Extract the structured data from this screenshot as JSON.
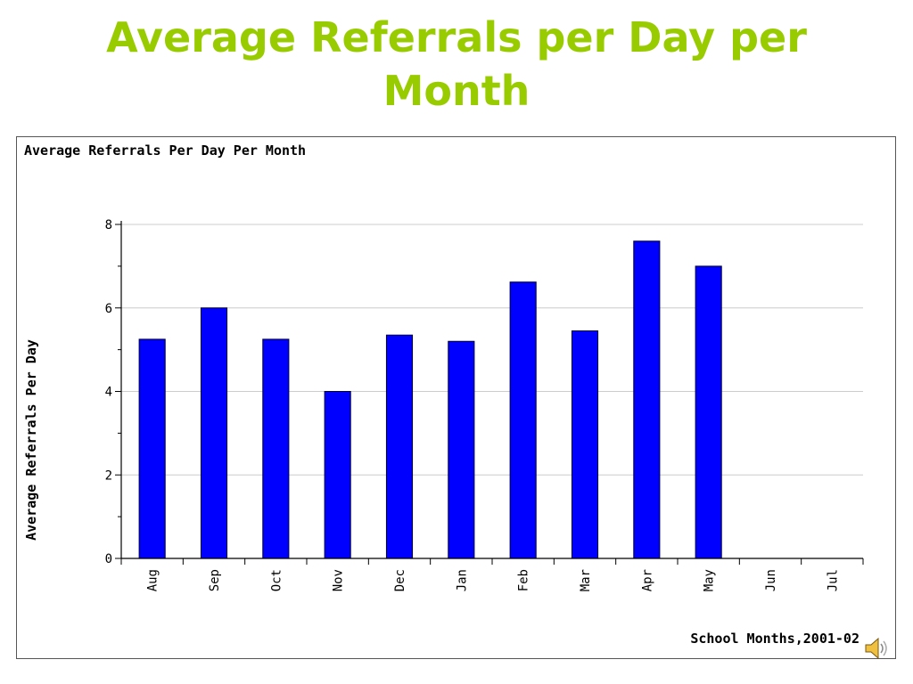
{
  "slide": {
    "title_line1": "Average Referrals per Day per",
    "title_line2": "Month"
  },
  "chart_data": {
    "type": "bar",
    "title": "Average Referrals Per Day Per Month",
    "xlabel": "School Months,2001-02",
    "ylabel": "Average Referrals Per Day",
    "categories": [
      "Aug",
      "Sep",
      "Oct",
      "Nov",
      "Dec",
      "Jan",
      "Feb",
      "Mar",
      "Apr",
      "May",
      "Jun",
      "Jul"
    ],
    "values": [
      5.25,
      6.0,
      5.25,
      4.0,
      5.35,
      5.2,
      6.62,
      5.45,
      7.6,
      7.0,
      null,
      null
    ],
    "ylim": [
      0,
      8
    ],
    "yticks": [
      0,
      2,
      4,
      6,
      8
    ],
    "grid": true,
    "bar_color": "#0000ff",
    "title_color": "#99cc00"
  },
  "icons": {
    "speaker": "speaker-icon"
  }
}
